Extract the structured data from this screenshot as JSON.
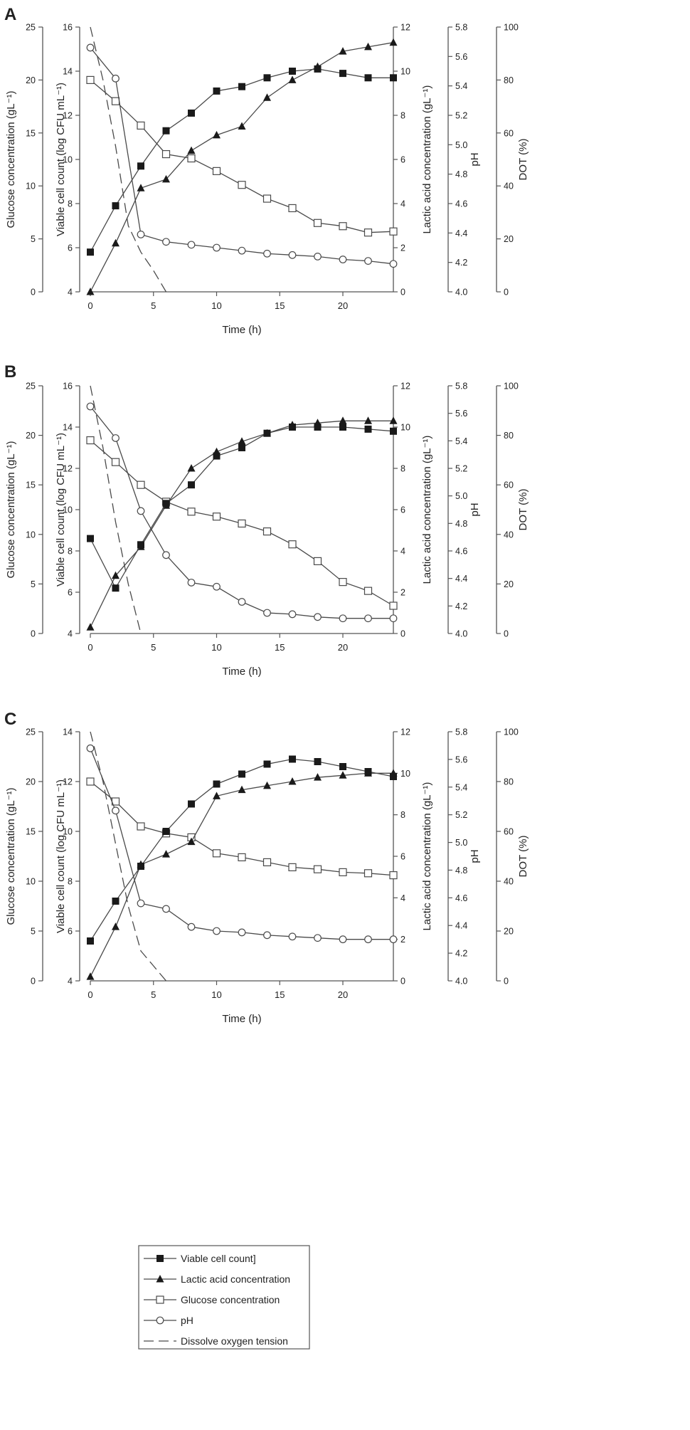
{
  "colors": {
    "line": "#4a4a4a",
    "marker_fill": "#1a1a1a",
    "axis": "#555555",
    "text": "#222222",
    "hollow": "#ffffff"
  },
  "legend": {
    "viable": "Viable cell count]",
    "lactic": "Lactic acid concentration",
    "glucose": "Glucose concentration",
    "ph": "pH",
    "dot": "Dissolve oxygen tension"
  },
  "chart_data": [
    {
      "panel_label": "A",
      "type": "line",
      "xlabel": "Time (h)",
      "xlim": [
        0,
        24
      ],
      "xticks": [
        0,
        5,
        10,
        15,
        20
      ],
      "axes": {
        "glucose": {
          "label": "Glucose concentration (gL⁻¹)",
          "lim": [
            0,
            25
          ],
          "ticks": [
            0,
            5,
            10,
            15,
            20,
            25
          ]
        },
        "viable": {
          "label": "Viable cell count (log CFU mL⁻¹)",
          "lim": [
            4,
            16
          ],
          "ticks": [
            4,
            6,
            8,
            10,
            12,
            14,
            16
          ]
        },
        "lactic": {
          "label": "Lactic acid concentration (gL⁻¹)",
          "lim": [
            0,
            12
          ],
          "ticks": [
            0,
            2,
            4,
            6,
            8,
            10,
            12
          ]
        },
        "ph": {
          "label": "pH",
          "lim": [
            4.0,
            5.8
          ],
          "ticks": [
            "4.0",
            "4.2",
            "4.4",
            "4.6",
            "4.8",
            "5.0",
            "5.2",
            "5.4",
            "5.6",
            "5.8"
          ]
        },
        "dot": {
          "label": "DOT (%)",
          "lim": [
            0,
            100
          ],
          "ticks": [
            0,
            20,
            40,
            60,
            80,
            100
          ]
        }
      },
      "series": {
        "viable": {
          "x": [
            0,
            2,
            4,
            6,
            8,
            10,
            12,
            14,
            16,
            18,
            20,
            22,
            24
          ],
          "y": [
            5.8,
            7.9,
            9.7,
            11.3,
            12.1,
            13.1,
            13.3,
            13.7,
            14.0,
            14.1,
            13.9,
            13.7,
            13.7
          ]
        },
        "lactic": {
          "x": [
            0,
            2,
            4,
            6,
            8,
            10,
            12,
            14,
            16,
            18,
            20,
            22,
            24
          ],
          "y": [
            0.0,
            2.2,
            4.7,
            5.1,
            6.4,
            7.1,
            7.5,
            8.8,
            9.6,
            10.2,
            10.9,
            11.1,
            11.3
          ]
        },
        "glucose": {
          "x": [
            0,
            2,
            4,
            6,
            8,
            10,
            12,
            14,
            16,
            18,
            20,
            22,
            24
          ],
          "y": [
            20.0,
            18.0,
            15.7,
            13.0,
            12.6,
            11.4,
            10.1,
            8.8,
            7.9,
            6.5,
            6.2,
            5.6,
            5.7
          ]
        },
        "ph": {
          "x": [
            0,
            2,
            4,
            6,
            8,
            10,
            12,
            14,
            16,
            18,
            20,
            22,
            24
          ],
          "y": [
            5.66,
            5.45,
            4.39,
            4.34,
            4.32,
            4.3,
            4.28,
            4.26,
            4.25,
            4.24,
            4.22,
            4.21,
            4.19
          ]
        },
        "dot": {
          "x": [
            0,
            1,
            2,
            3,
            4,
            5,
            6
          ],
          "y": [
            100,
            80,
            55,
            25,
            15,
            8,
            0
          ]
        }
      }
    },
    {
      "panel_label": "B",
      "type": "line",
      "xlabel": "Time (h)",
      "xlim": [
        0,
        24
      ],
      "xticks": [
        0,
        5,
        10,
        15,
        20
      ],
      "axes": {
        "glucose": {
          "label": "Glucose concentration (gL⁻¹)",
          "lim": [
            0,
            25
          ],
          "ticks": [
            0,
            5,
            10,
            15,
            20,
            25
          ]
        },
        "viable": {
          "label": "Viable cell count (log CFU mL⁻¹)",
          "lim": [
            4,
            16
          ],
          "ticks": [
            4,
            6,
            8,
            10,
            12,
            14,
            16
          ]
        },
        "lactic": {
          "label": "Lactic acid concentration (gL⁻¹)",
          "lim": [
            0,
            12
          ],
          "ticks": [
            0,
            2,
            4,
            6,
            8,
            10,
            12
          ]
        },
        "ph": {
          "label": "pH",
          "lim": [
            4.0,
            5.8
          ],
          "ticks": [
            "4.0",
            "4.2",
            "4.4",
            "4.6",
            "4.8",
            "5.0",
            "5.2",
            "5.4",
            "5.6",
            "5.8"
          ]
        },
        "dot": {
          "label": "DOT (%)",
          "lim": [
            0,
            100
          ],
          "ticks": [
            0,
            20,
            40,
            60,
            80,
            100
          ]
        }
      },
      "series": {
        "viable": {
          "x": [
            0,
            2,
            4,
            6,
            8,
            10,
            12,
            14,
            16,
            18,
            20,
            22,
            24
          ],
          "y": [
            8.6,
            6.2,
            8.3,
            10.3,
            11.2,
            12.6,
            13.0,
            13.7,
            14.0,
            14.0,
            14.0,
            13.9,
            13.8
          ]
        },
        "lactic": {
          "x": [
            0,
            2,
            4,
            6,
            8,
            10,
            12,
            14,
            16,
            18,
            20,
            22,
            24
          ],
          "y": [
            0.3,
            2.8,
            4.2,
            6.2,
            8.0,
            8.8,
            9.3,
            9.7,
            10.1,
            10.2,
            10.3,
            10.3,
            10.3
          ]
        },
        "glucose": {
          "x": [
            0,
            2,
            4,
            6,
            8,
            10,
            12,
            14,
            16,
            18,
            20,
            22,
            24
          ],
          "y": [
            19.5,
            17.3,
            15.0,
            13.3,
            12.3,
            11.8,
            11.1,
            10.3,
            9.0,
            7.3,
            5.2,
            4.3,
            2.8
          ]
        },
        "ph": {
          "x": [
            0,
            2,
            4,
            6,
            8,
            10,
            12,
            14,
            16,
            18,
            20,
            22,
            24
          ],
          "y": [
            5.65,
            5.42,
            4.89,
            4.57,
            4.37,
            4.34,
            4.23,
            4.15,
            4.14,
            4.12,
            4.11,
            4.11,
            4.11
          ]
        },
        "dot": {
          "x": [
            0,
            1,
            2,
            3,
            4
          ],
          "y": [
            100,
            75,
            45,
            20,
            0
          ]
        }
      }
    },
    {
      "panel_label": "C",
      "type": "line",
      "xlabel": "Time (h)",
      "xlim": [
        0,
        24
      ],
      "xticks": [
        0,
        5,
        10,
        15,
        20
      ],
      "axes": {
        "glucose": {
          "label": "Glucose concentration (gL⁻¹)",
          "lim": [
            0,
            25
          ],
          "ticks": [
            0,
            5,
            10,
            15,
            20,
            25
          ]
        },
        "viable": {
          "label": "Viable cell count (log CFU mL⁻¹)",
          "lim": [
            4,
            14
          ],
          "ticks": [
            4,
            6,
            8,
            10,
            12,
            14
          ]
        },
        "lactic": {
          "label": "Lactic acid concentration (gL⁻¹)",
          "lim": [
            0,
            12
          ],
          "ticks": [
            0,
            2,
            4,
            6,
            8,
            10,
            12
          ]
        },
        "ph": {
          "label": "pH",
          "lim": [
            4.0,
            5.8
          ],
          "ticks": [
            "4.0",
            "4.2",
            "4.4",
            "4.6",
            "4.8",
            "5.0",
            "5.2",
            "5.4",
            "5.6",
            "5.8"
          ]
        },
        "dot": {
          "label": "DOT (%)",
          "lim": [
            0,
            100
          ],
          "ticks": [
            0,
            20,
            40,
            60,
            80,
            100
          ]
        }
      },
      "series": {
        "viable": {
          "x": [
            0,
            2,
            4,
            6,
            8,
            10,
            12,
            14,
            16,
            18,
            20,
            22,
            24
          ],
          "y": [
            5.6,
            7.2,
            8.6,
            10.0,
            11.1,
            11.9,
            12.3,
            12.7,
            12.9,
            12.8,
            12.6,
            12.4,
            12.2
          ]
        },
        "lactic": {
          "x": [
            0,
            2,
            4,
            6,
            8,
            10,
            12,
            14,
            16,
            18,
            20,
            22,
            24
          ],
          "y": [
            0.2,
            2.6,
            5.6,
            6.1,
            6.7,
            8.9,
            9.2,
            9.4,
            9.6,
            9.8,
            9.9,
            10.0,
            10.0
          ]
        },
        "glucose": {
          "x": [
            0,
            2,
            4,
            6,
            8,
            10,
            12,
            14,
            16,
            18,
            20,
            22,
            24
          ],
          "y": [
            20.0,
            18.0,
            15.5,
            14.8,
            14.4,
            12.8,
            12.4,
            11.9,
            11.4,
            11.2,
            10.9,
            10.8,
            10.6
          ]
        },
        "ph": {
          "x": [
            0,
            2,
            4,
            6,
            8,
            10,
            12,
            14,
            16,
            18,
            20,
            22,
            24
          ],
          "y": [
            5.68,
            5.23,
            4.56,
            4.52,
            4.39,
            4.36,
            4.35,
            4.33,
            4.32,
            4.31,
            4.3,
            4.3,
            4.3
          ]
        },
        "dot": {
          "x": [
            0,
            1,
            2,
            3,
            4,
            5,
            6
          ],
          "y": [
            100,
            80,
            55,
            30,
            12,
            6,
            0
          ]
        }
      }
    }
  ]
}
